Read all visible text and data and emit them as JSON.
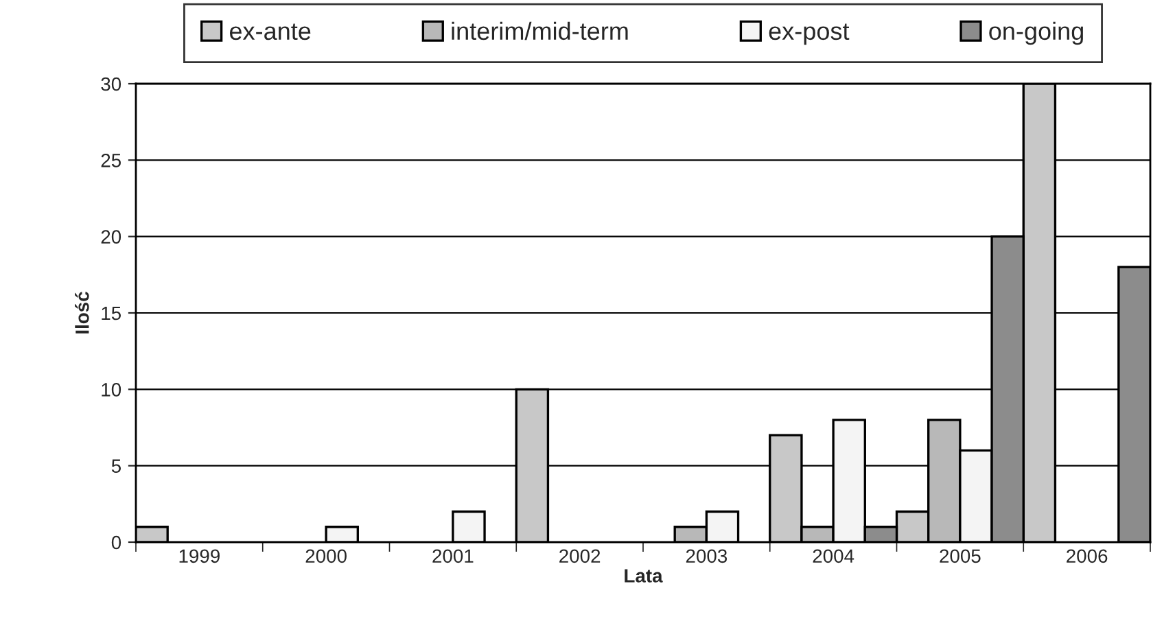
{
  "chart_data": {
    "type": "bar",
    "xlabel": "Lata",
    "ylabel": "Ilość",
    "categories": [
      "1999",
      "2000",
      "2001",
      "2002",
      "2003",
      "2004",
      "2005",
      "2006"
    ],
    "series": [
      {
        "name": "ex-ante",
        "color": "#c8c8c8",
        "values": [
          1,
          0,
          0,
          10,
          0,
          7,
          2,
          30
        ]
      },
      {
        "name": "interim/mid-term",
        "color": "#b8b8b8",
        "values": [
          0,
          0,
          0,
          0,
          1,
          1,
          8,
          0
        ]
      },
      {
        "name": "ex-post",
        "color": "#f4f4f4",
        "values": [
          0,
          1,
          2,
          0,
          2,
          8,
          6,
          0
        ]
      },
      {
        "name": "on-going",
        "color": "#8c8c8c",
        "values": [
          0,
          0,
          0,
          0,
          0,
          1,
          20,
          18
        ]
      }
    ],
    "ylim": [
      0,
      30
    ],
    "yticks": [
      0,
      5,
      10,
      15,
      20,
      25,
      30
    ],
    "grid": "y",
    "legend": "top"
  }
}
